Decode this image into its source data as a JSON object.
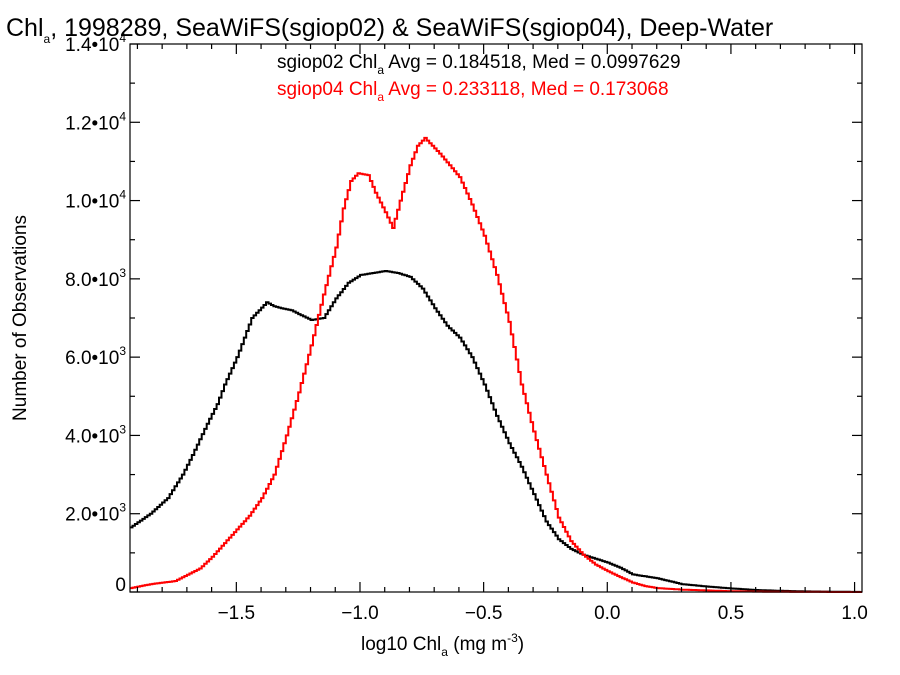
{
  "chart_data": {
    "type": "line",
    "title": {
      "pre": "Chl",
      "sub": "a",
      "post": ", 1998289, SeaWiFS(sgiop02) & SeaWiFS(sgiop04), Deep-Water"
    },
    "xlabel": {
      "pre": "log10 Chl",
      "sub": "a",
      "mid": " (mg m",
      "sup": "-3",
      "post": ")"
    },
    "ylabel": "Number of Observations",
    "xlim": [
      -1.93,
      1.03
    ],
    "ylim": [
      0,
      14000
    ],
    "xticks": [
      {
        "value": -1.5,
        "label": "−1.5"
      },
      {
        "value": -1.0,
        "label": "−1.0"
      },
      {
        "value": -0.5,
        "label": "−0.5"
      },
      {
        "value": 0.0,
        "label": "0.0"
      },
      {
        "value": 0.5,
        "label": "0.5"
      },
      {
        "value": 1.0,
        "label": "1.0"
      }
    ],
    "yticks": [
      {
        "value": 0,
        "mant": "0",
        "exp": ""
      },
      {
        "value": 2000,
        "mant": "2.0•10",
        "exp": "3"
      },
      {
        "value": 4000,
        "mant": "4.0•10",
        "exp": "3"
      },
      {
        "value": 6000,
        "mant": "6.0•10",
        "exp": "3"
      },
      {
        "value": 8000,
        "mant": "8.0•10",
        "exp": "3"
      },
      {
        "value": 10000,
        "mant": "1.0•10",
        "exp": "4"
      },
      {
        "value": 12000,
        "mant": "1.2•10",
        "exp": "4"
      },
      {
        "value": 14000,
        "mant": "1.4•10",
        "exp": "4"
      }
    ],
    "annotations": [
      {
        "pre": "sgiop02 Chl",
        "sub": "a",
        "post": " Avg = 0.184518, Med = 0.0997629",
        "color": "#000000"
      },
      {
        "pre": "sgiop04 Chl",
        "sub": "a",
        "post": " Avg = 0.233118, Med = 0.173068",
        "color": "#ff0000"
      }
    ],
    "series": [
      {
        "color": "#000000",
        "x": [
          -1.93,
          -1.85,
          -1.78,
          -1.72,
          -1.68,
          -1.62,
          -1.58,
          -1.55,
          -1.5,
          -1.47,
          -1.44,
          -1.41,
          -1.38,
          -1.35,
          -1.32,
          -1.28,
          -1.25,
          -1.2,
          -1.15,
          -1.1,
          -1.05,
          -1.0,
          -0.95,
          -0.9,
          -0.85,
          -0.8,
          -0.75,
          -0.7,
          -0.65,
          -0.6,
          -0.55,
          -0.5,
          -0.45,
          -0.4,
          -0.35,
          -0.3,
          -0.25,
          -0.2,
          -0.15,
          -0.1,
          -0.05,
          0.0,
          0.05,
          0.1,
          0.2,
          0.3,
          0.4,
          0.5,
          0.6,
          0.7,
          0.8,
          1.03
        ],
        "y": [
          1650,
          2000,
          2400,
          3000,
          3500,
          4300,
          4800,
          5300,
          6000,
          6500,
          7000,
          7200,
          7400,
          7300,
          7250,
          7200,
          7100,
          6950,
          7000,
          7500,
          7900,
          8100,
          8150,
          8200,
          8150,
          8050,
          7750,
          7250,
          6800,
          6500,
          6000,
          5300,
          4500,
          3800,
          3200,
          2500,
          1800,
          1350,
          1100,
          950,
          850,
          750,
          620,
          450,
          350,
          200,
          140,
          90,
          50,
          30,
          15,
          0
        ]
      },
      {
        "color": "#ff0000",
        "x": [
          -1.93,
          -1.85,
          -1.75,
          -1.65,
          -1.6,
          -1.55,
          -1.5,
          -1.45,
          -1.4,
          -1.35,
          -1.3,
          -1.25,
          -1.2,
          -1.15,
          -1.1,
          -1.07,
          -1.04,
          -1.01,
          -0.97,
          -0.94,
          -0.9,
          -0.87,
          -0.84,
          -0.8,
          -0.77,
          -0.74,
          -0.71,
          -0.68,
          -0.64,
          -0.6,
          -0.55,
          -0.5,
          -0.45,
          -0.4,
          -0.35,
          -0.3,
          -0.25,
          -0.2,
          -0.15,
          -0.1,
          -0.05,
          0.0,
          0.05,
          0.1,
          0.15,
          0.2,
          0.3,
          0.4,
          0.5,
          0.6,
          0.7,
          0.8,
          1.03
        ],
        "y": [
          100,
          200,
          280,
          600,
          900,
          1250,
          1600,
          1950,
          2400,
          3000,
          4000,
          5100,
          6300,
          7600,
          8800,
          9800,
          10500,
          10700,
          10650,
          10200,
          9700,
          9300,
          10000,
          10900,
          11400,
          11600,
          11400,
          11200,
          10900,
          10600,
          9900,
          9100,
          8100,
          6900,
          5300,
          4100,
          3000,
          1900,
          1300,
          950,
          700,
          530,
          380,
          240,
          150,
          100,
          60,
          40,
          20,
          10,
          5,
          2,
          0
        ]
      }
    ]
  }
}
